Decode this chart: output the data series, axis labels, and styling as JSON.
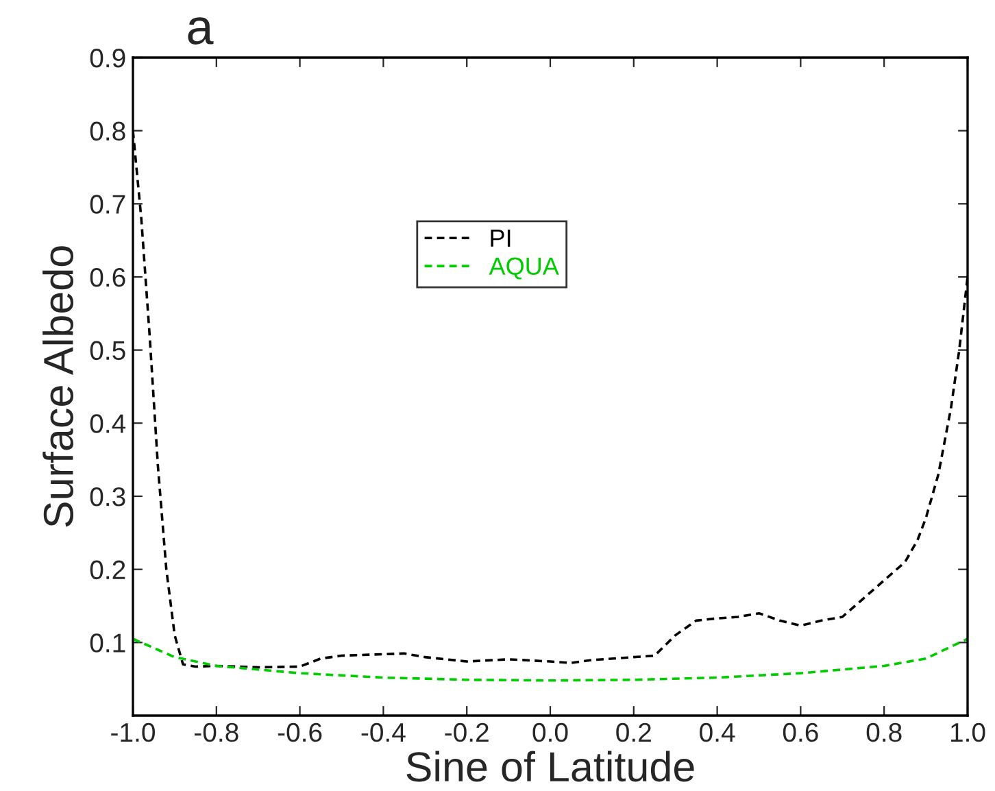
{
  "chart_data": {
    "type": "line",
    "title": "a",
    "xlabel": "Sine of Latitude",
    "ylabel": "Surface Albedo",
    "xlim": [
      -1.0,
      1.0
    ],
    "xticks": [
      {
        "value": -1.0,
        "label": "-1.0"
      },
      {
        "value": -0.8,
        "label": "-0.8"
      },
      {
        "value": -0.6,
        "label": "-0.6"
      },
      {
        "value": -0.4,
        "label": "-0.4"
      },
      {
        "value": -0.2,
        "label": "-0.2"
      },
      {
        "value": 0.0,
        "label": "0.0"
      },
      {
        "value": 0.2,
        "label": "0.2"
      },
      {
        "value": 0.4,
        "label": "0.4"
      },
      {
        "value": 0.6,
        "label": "0.6"
      },
      {
        "value": 0.8,
        "label": "0.8"
      },
      {
        "value": 1.0,
        "label": "1.0"
      }
    ],
    "ylim": [
      0,
      0.9
    ],
    "yticks": [
      0.1,
      0.2,
      0.3,
      0.4,
      0.5,
      0.6,
      0.7,
      0.8,
      0.9
    ],
    "grid": false,
    "legend": "top",
    "line_style": "dashed",
    "marker": "none",
    "series": [
      {
        "name": "PI",
        "color": "#000000",
        "x": [
          -1.0,
          -0.98,
          -0.96,
          -0.94,
          -0.92,
          -0.9,
          -0.88,
          -0.85,
          -0.8,
          -0.7,
          -0.6,
          -0.55,
          -0.5,
          -0.4,
          -0.35,
          -0.3,
          -0.2,
          -0.1,
          0.0,
          0.05,
          0.1,
          0.2,
          0.25,
          0.3,
          0.35,
          0.4,
          0.45,
          0.5,
          0.55,
          0.6,
          0.65,
          0.7,
          0.75,
          0.8,
          0.85,
          0.88,
          0.9,
          0.93,
          0.96,
          0.98,
          1.0
        ],
        "values": [
          0.8,
          0.68,
          0.52,
          0.34,
          0.2,
          0.11,
          0.07,
          0.067,
          0.068,
          0.066,
          0.067,
          0.078,
          0.082,
          0.084,
          0.085,
          0.08,
          0.074,
          0.077,
          0.074,
          0.072,
          0.076,
          0.08,
          0.082,
          0.11,
          0.13,
          0.133,
          0.135,
          0.14,
          0.13,
          0.123,
          0.13,
          0.135,
          0.16,
          0.185,
          0.21,
          0.24,
          0.27,
          0.33,
          0.42,
          0.5,
          0.6
        ]
      },
      {
        "name": "AQUA",
        "color": "#00cc00",
        "x": [
          -1.0,
          -0.9,
          -0.8,
          -0.6,
          -0.4,
          -0.2,
          0.0,
          0.2,
          0.4,
          0.6,
          0.8,
          0.9,
          1.0
        ],
        "values": [
          0.105,
          0.08,
          0.068,
          0.058,
          0.052,
          0.049,
          0.048,
          0.049,
          0.052,
          0.058,
          0.068,
          0.078,
          0.105
        ]
      }
    ]
  }
}
